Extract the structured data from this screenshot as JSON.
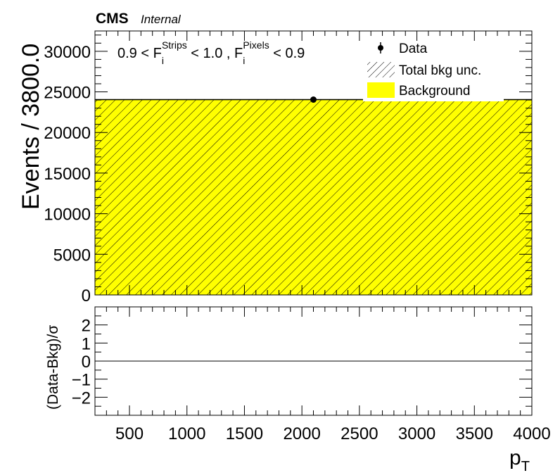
{
  "header": {
    "experiment": "CMS",
    "status": "Internal"
  },
  "selection": {
    "lead": "0.9 < F",
    "sub1": "i",
    "sup1": "Strips",
    "mid": " < 1.0 , F",
    "sub2": "i",
    "sup2": "Pixels",
    "tail": " < 0.9"
  },
  "legend": {
    "data": "Data",
    "unc": "Total bkg unc.",
    "bkg": "Background"
  },
  "colors": {
    "background_fill": "#ffff00",
    "hatch": "#000000",
    "data_marker": "#000000"
  },
  "chart_data": [
    {
      "type": "bar",
      "panel": "main",
      "xlabel": "p",
      "xlabel_sub": "T",
      "ylabel": "Events / 3800.0",
      "xlim": [
        200,
        4000
      ],
      "ylim": [
        0,
        32500
      ],
      "x_ticks": [
        500,
        1000,
        1500,
        2000,
        2500,
        3000,
        3500,
        4000
      ],
      "y_ticks": [
        0,
        5000,
        10000,
        15000,
        20000,
        25000,
        30000
      ],
      "bins": [
        [
          200,
          4000
        ]
      ],
      "background": [
        24050
      ],
      "background_unc": [
        0
      ],
      "data_points": [
        {
          "x": 2100,
          "y": 24050
        }
      ],
      "legend_position": "top-right",
      "grid": false
    },
    {
      "type": "line",
      "panel": "ratio",
      "ylabel": "(Data-Bkg)/σ",
      "xlim": [
        200,
        4000
      ],
      "ylim": [
        -3,
        3
      ],
      "y_ticks": [
        -2,
        -1,
        0,
        1,
        2
      ],
      "reference_line": 0,
      "grid": false
    }
  ]
}
